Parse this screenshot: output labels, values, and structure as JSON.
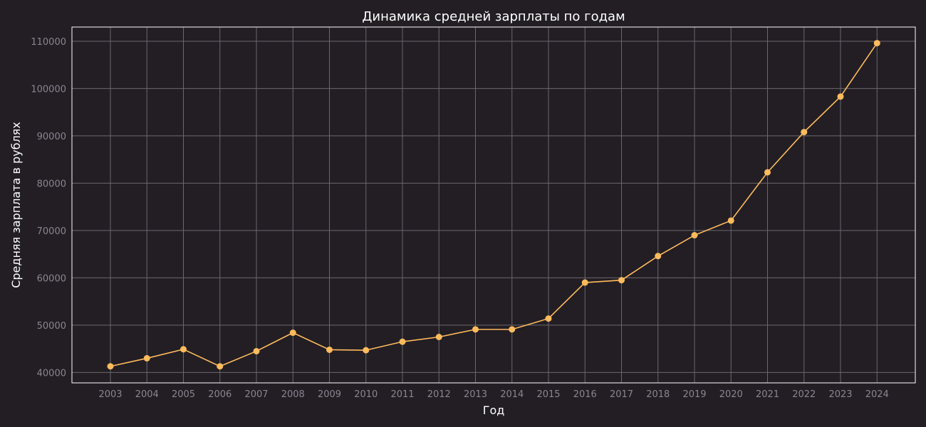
{
  "chart_data": {
    "type": "line",
    "title": "Динамика средней зарплаты по годам",
    "xlabel": "Год",
    "ylabel": "Средняя зарплата в рублях",
    "categories": [
      "2003",
      "2004",
      "2005",
      "2006",
      "2007",
      "2008",
      "2009",
      "2010",
      "2011",
      "2012",
      "2013",
      "2014",
      "2015",
      "2016",
      "2017",
      "2018",
      "2019",
      "2020",
      "2021",
      "2022",
      "2023",
      "2024"
    ],
    "series": [
      {
        "values": [
          41300,
          43000,
          44900,
          41300,
          44500,
          48400,
          44800,
          44700,
          46500,
          47500,
          49100,
          49100,
          51400,
          59000,
          59500,
          64600,
          69000,
          72100,
          82300,
          90800,
          98300,
          109600
        ]
      }
    ],
    "yticks": [
      "40000",
      "50000",
      "60000",
      "70000",
      "80000",
      "90000",
      "100000",
      "110000"
    ],
    "ylim": [
      37800,
      113000
    ],
    "grid": true,
    "colors": {
      "background": "#221e24",
      "line": "#ffbb5c",
      "grid": "#6b676e",
      "frame": "#ffffff",
      "tick_text": "#8a8590",
      "label_text": "#ffffff"
    }
  }
}
